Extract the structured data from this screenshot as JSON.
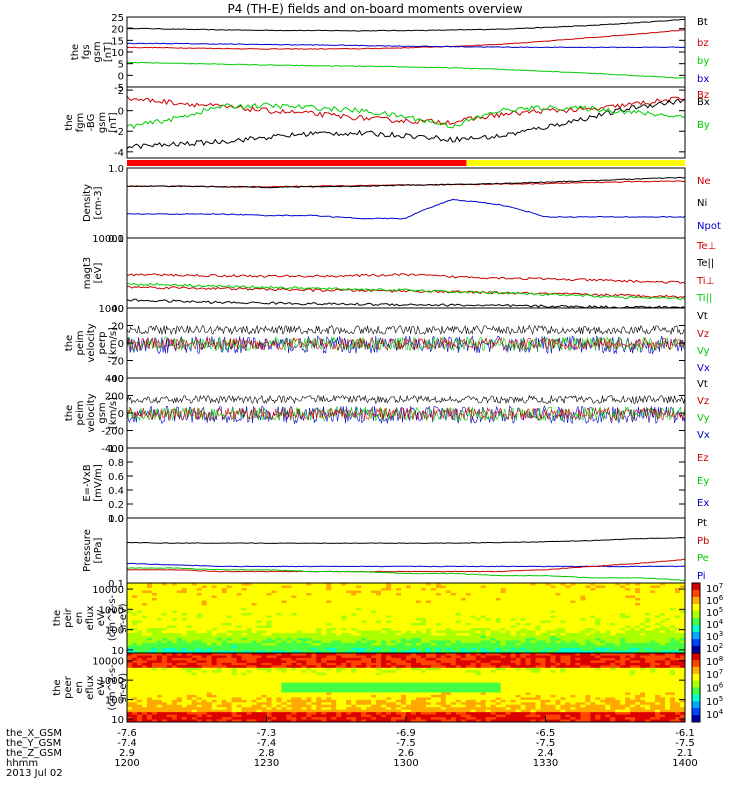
{
  "title": "P4 (TH-E) fields and on-board moments overview",
  "panels": [
    {
      "id": "fgs",
      "ylabel": [
        "the",
        "fgs",
        "gsm",
        "[nT]"
      ],
      "scale": "linear",
      "ylim": [
        -5,
        25
      ],
      "ticks": [
        "25",
        "20",
        "15",
        "10",
        "5",
        "0",
        "-5"
      ],
      "tickvals": [
        25,
        20,
        15,
        10,
        5,
        0,
        -5
      ],
      "legend": [
        {
          "label": "Bt",
          "color": "#000000"
        },
        {
          "label": "bz",
          "color": "#cc0000"
        },
        {
          "label": "by",
          "color": "#00cc00"
        },
        {
          "label": "bx",
          "color": "#0000cc"
        }
      ]
    },
    {
      "id": "fgm",
      "ylabel": [
        "the",
        "fgm",
        "-BG",
        "gsm",
        "[nT]"
      ],
      "scale": "linear",
      "ylim": [
        -4.6,
        2.3
      ],
      "ticks": [
        "2",
        "0",
        "-2",
        "-4"
      ],
      "tickvals": [
        2,
        0,
        -2,
        -4
      ],
      "legend": [
        {
          "label": "Bz",
          "color": "#cc0000"
        },
        {
          "label": "Bx",
          "color": "#000000"
        },
        {
          "label": "By",
          "color": "#00cc00"
        }
      ]
    },
    {
      "id": "density",
      "ylabel": [
        "Density",
        "[cm-3]"
      ],
      "scale": "log",
      "ylim": [
        0.1,
        1.0
      ],
      "ticks": [
        "1.0",
        "0.1"
      ],
      "tickvals": [
        1.0,
        0.1
      ],
      "legend": [
        {
          "label": "Ne",
          "color": "#cc0000"
        },
        {
          "label": "Ni",
          "color": "#000000"
        },
        {
          "label": "Npot",
          "color": "#0000cc"
        }
      ]
    },
    {
      "id": "temp",
      "ylabel": [
        "magt3",
        "[eV]"
      ],
      "scale": "log",
      "ylim": [
        1000,
        10000
      ],
      "ticks": [
        "10000",
        "1000"
      ],
      "tickvals": [
        10000,
        1000
      ],
      "legend": [
        {
          "label": "Te⊥",
          "color": "#cc0000"
        },
        {
          "label": "Te||",
          "color": "#000000"
        },
        {
          "label": "Ti⊥",
          "color": "#cc0000"
        },
        {
          "label": "Ti||",
          "color": "#00cc00"
        }
      ]
    },
    {
      "id": "velocity_perp",
      "ylabel": [
        "the",
        "peim",
        "velocity",
        "perp",
        "[km/s]"
      ],
      "scale": "linear",
      "ylim": [
        -40,
        40
      ],
      "ticks": [
        "40",
        "20",
        "0",
        "-20",
        "-40"
      ],
      "tickvals": [
        40,
        20,
        0,
        -20,
        -40
      ],
      "legend": [
        {
          "label": "Vt",
          "color": "#000000"
        },
        {
          "label": "Vz",
          "color": "#cc0000"
        },
        {
          "label": "Vy",
          "color": "#00cc00"
        },
        {
          "label": "Vx",
          "color": "#0000cc"
        }
      ]
    },
    {
      "id": "velocity_gsm",
      "ylabel": [
        "the",
        "peim",
        "velocity",
        "gsm",
        "[km/s]"
      ],
      "scale": "linear",
      "ylim": [
        -400,
        400
      ],
      "ticks": [
        "400",
        "200",
        "0",
        "-200",
        "-400"
      ],
      "tickvals": [
        400,
        200,
        0,
        -200,
        -400
      ],
      "legend": [
        {
          "label": "Vt",
          "color": "#000000"
        },
        {
          "label": "Vz",
          "color": "#cc0000"
        },
        {
          "label": "Vy",
          "color": "#00cc00"
        },
        {
          "label": "Vx",
          "color": "#0000cc"
        }
      ]
    },
    {
      "id": "efield",
      "ylabel": [
        "E=-VxB",
        "[mV/m]"
      ],
      "scale": "linear",
      "ylim": [
        0,
        1.0
      ],
      "ticks": [
        "1.0",
        "0.8",
        "0.6",
        "0.4",
        "0.2",
        "0.0"
      ],
      "tickvals": [
        1.0,
        0.8,
        0.6,
        0.4,
        0.2,
        0.0
      ],
      "legend": [
        {
          "label": "Ez",
          "color": "#cc0000"
        },
        {
          "label": "Ey",
          "color": "#00cc00"
        },
        {
          "label": "Ex",
          "color": "#0000cc"
        }
      ]
    },
    {
      "id": "pressure",
      "ylabel": [
        "Pressure",
        "[nPa]"
      ],
      "scale": "log",
      "ylim": [
        0.1,
        1.0
      ],
      "ticks": [
        "1.0",
        "0.1"
      ],
      "tickvals": [
        1.0,
        0.1
      ],
      "legend": [
        {
          "label": "Pt",
          "color": "#000000"
        },
        {
          "label": "Pb",
          "color": "#cc0000"
        },
        {
          "label": "Pe",
          "color": "#00cc00"
        },
        {
          "label": "Pi",
          "color": "#0000cc"
        }
      ]
    },
    {
      "id": "peir",
      "ylabel": [
        "the",
        "peir",
        "en",
        "eflux",
        "eV/",
        "(cm^2-s-",
        "sr-eV)"
      ],
      "scale": "log",
      "ylim": [
        7,
        20000
      ],
      "ticks": [
        "10000",
        "1000",
        "100",
        "10"
      ],
      "tickvals": [
        10000,
        1000,
        100,
        10
      ],
      "colorbar": {
        "exponents": [
          "7",
          "6",
          "5",
          "4",
          "3",
          "2"
        ],
        "min_exp": 1.6,
        "max_exp": 7.4
      }
    },
    {
      "id": "peer",
      "ylabel": [
        "the",
        "peer",
        "en",
        "eflux",
        "eV/",
        "(cm^2-s-",
        "sr-eV)"
      ],
      "scale": "log",
      "ylim": [
        7,
        25000
      ],
      "ticks": [
        "10000",
        "1000",
        "100",
        "10"
      ],
      "tickvals": [
        10000,
        1000,
        100,
        10
      ],
      "colorbar": {
        "exponents": [
          "8",
          "7",
          "6",
          "5",
          "4"
        ],
        "min_exp": 3.4,
        "max_exp": 8.6
      }
    }
  ],
  "footer": {
    "rows": [
      {
        "label": "the_X_GSM",
        "values": [
          "-7.6",
          "-7.3",
          "-6.9",
          "-6.5",
          "-6.1"
        ]
      },
      {
        "label": "the_Y_GSM",
        "values": [
          "-7.4",
          "-7.4",
          "-7.5",
          "-7.5",
          "-7.5"
        ]
      },
      {
        "label": "the_Z_GSM",
        "values": [
          "2.9",
          "2.8",
          "2.6",
          "2.4",
          "2.1"
        ]
      },
      {
        "label": "hhmm",
        "values": [
          "1200",
          "1230",
          "1300",
          "1330",
          "1400"
        ]
      }
    ],
    "date": "2013 Jul 02"
  },
  "chart_data": {
    "type": "line",
    "title": "P4 (TH-E) fields and on-board moments overview",
    "x": {
      "name": "hhmm",
      "ticks": [
        "1200",
        "1230",
        "1300",
        "1330",
        "1400"
      ],
      "range": [
        "12:00",
        "14:00"
      ]
    },
    "mode_bar": [
      {
        "from": "12:00",
        "to": "13:13",
        "color": "#ff0000"
      },
      {
        "from": "13:13",
        "to": "14:00",
        "color": "#ffff00"
      }
    ],
    "series": [
      {
        "panel": "fgs",
        "name": "Bt",
        "t": [
          0,
          10,
          20,
          30,
          40,
          50,
          60,
          70,
          80,
          90,
          100,
          110,
          120
        ],
        "v": [
          20.2,
          19.8,
          19.5,
          19.3,
          19.2,
          19.1,
          19.2,
          19.4,
          19.8,
          20.5,
          21.4,
          22.6,
          24.0
        ]
      },
      {
        "panel": "fgs",
        "name": "bz",
        "t": [
          0,
          10,
          20,
          30,
          40,
          50,
          60,
          70,
          80,
          90,
          100,
          110,
          120
        ],
        "v": [
          12.0,
          11.8,
          11.5,
          11.3,
          11.3,
          11.4,
          11.8,
          12.4,
          13.3,
          14.6,
          16.2,
          17.8,
          19.5
        ]
      },
      {
        "panel": "fgs",
        "name": "by",
        "t": [
          0,
          10,
          20,
          30,
          40,
          50,
          60,
          70,
          80,
          90,
          100,
          110,
          120
        ],
        "v": [
          5.5,
          5.2,
          4.8,
          4.4,
          4.1,
          3.9,
          3.6,
          3.2,
          2.6,
          1.8,
          0.9,
          -0.2,
          -1.2
        ]
      },
      {
        "panel": "fgs",
        "name": "bx",
        "t": [
          0,
          10,
          20,
          30,
          40,
          50,
          60,
          70,
          80,
          90,
          100,
          110,
          120
        ],
        "v": [
          13.7,
          13.6,
          13.4,
          13.2,
          13.0,
          12.8,
          12.5,
          12.3,
          12.1,
          12.0,
          12.0,
          12.0,
          12.1
        ]
      },
      {
        "panel": "fgm",
        "name": "Bz",
        "t": [
          0,
          10,
          20,
          30,
          40,
          50,
          60,
          70,
          80,
          90,
          100,
          110,
          120
        ],
        "v": [
          1.2,
          0.8,
          0.4,
          0.0,
          -0.3,
          -0.7,
          -1.0,
          -1.1,
          -0.4,
          0.0,
          0.1,
          0.7,
          1.2
        ]
      },
      {
        "panel": "fgm",
        "name": "Bx",
        "t": [
          0,
          10,
          20,
          30,
          40,
          50,
          60,
          70,
          80,
          90,
          100,
          110,
          120
        ],
        "v": [
          -3.5,
          -3.3,
          -3.0,
          -2.6,
          -2.2,
          -2.2,
          -2.4,
          -2.8,
          -2.5,
          -1.6,
          -0.6,
          0.4,
          1.0
        ]
      },
      {
        "panel": "fgm",
        "name": "By",
        "t": [
          0,
          10,
          20,
          30,
          40,
          50,
          60,
          70,
          80,
          90,
          100,
          110,
          120
        ],
        "v": [
          -1.6,
          -0.8,
          0.4,
          0.5,
          0.3,
          0.0,
          -0.6,
          -1.5,
          0.0,
          0.3,
          0.2,
          -0.2,
          -0.6
        ]
      },
      {
        "panel": "density",
        "name": "Ne",
        "t": [
          0,
          10,
          20,
          30,
          40,
          50,
          60,
          70,
          80,
          90,
          100,
          110,
          120
        ],
        "v": [
          0.55,
          0.55,
          0.54,
          0.54,
          0.55,
          0.56,
          0.57,
          0.58,
          0.59,
          0.6,
          0.62,
          0.64,
          0.65
        ]
      },
      {
        "panel": "density",
        "name": "Ni",
        "t": [
          0,
          10,
          20,
          30,
          40,
          50,
          60,
          70,
          80,
          90,
          100,
          110,
          120
        ],
        "v": [
          0.55,
          0.55,
          0.54,
          0.53,
          0.54,
          0.55,
          0.57,
          0.58,
          0.6,
          0.63,
          0.66,
          0.7,
          0.73
        ]
      },
      {
        "panel": "density",
        "name": "Npot",
        "t": [
          0,
          10,
          20,
          30,
          40,
          50,
          60,
          70,
          75,
          80,
          90,
          100,
          110,
          120
        ],
        "v": [
          0.22,
          0.22,
          0.22,
          0.21,
          0.21,
          0.19,
          0.19,
          0.35,
          0.33,
          0.3,
          0.2,
          0.2,
          0.2,
          0.2
        ]
      },
      {
        "panel": "temp",
        "name": "Te||",
        "t": [
          0,
          10,
          20,
          30,
          40,
          50,
          60,
          70,
          80,
          90,
          100,
          110,
          120
        ],
        "v": [
          1300,
          1250,
          1200,
          1180,
          1150,
          1130,
          1120,
          1100,
          1080,
          1060,
          1040,
          1030,
          1020
        ]
      },
      {
        "panel": "temp",
        "name": "Ti⊥",
        "t": [
          0,
          10,
          20,
          30,
          40,
          50,
          60,
          70,
          80,
          90,
          100,
          110,
          120
        ],
        "v": [
          2000,
          1950,
          1900,
          1850,
          1800,
          1780,
          1750,
          1700,
          1650,
          1600,
          1550,
          1500,
          1450
        ]
      },
      {
        "panel": "temp",
        "name": "Ti||",
        "t": [
          0,
          10,
          20,
          30,
          40,
          50,
          60,
          70,
          80,
          90,
          100,
          110,
          120
        ],
        "v": [
          2200,
          2150,
          2050,
          1980,
          1900,
          1850,
          1800,
          1700,
          1650,
          1550,
          1480,
          1400,
          1350
        ]
      },
      {
        "panel": "temp",
        "name": "Te⊥",
        "t": [
          0,
          10,
          20,
          30,
          40,
          50,
          60,
          70,
          80,
          90,
          100,
          110,
          120
        ],
        "v": [
          3000,
          2950,
          2900,
          2850,
          2850,
          2900,
          3000,
          2800,
          2700,
          2600,
          2500,
          2400,
          2300
        ]
      },
      {
        "panel": "pressure",
        "name": "Pt",
        "t": [
          0,
          10,
          20,
          30,
          40,
          50,
          60,
          70,
          80,
          90,
          100,
          110,
          120
        ],
        "v": [
          0.42,
          0.41,
          0.41,
          0.41,
          0.41,
          0.41,
          0.41,
          0.41,
          0.42,
          0.43,
          0.45,
          0.48,
          0.5
        ]
      },
      {
        "panel": "pressure",
        "name": "Pi",
        "t": [
          0,
          10,
          20,
          30,
          40,
          50,
          60,
          70,
          80,
          90,
          100,
          110,
          120
        ],
        "v": [
          0.2,
          0.19,
          0.18,
          0.18,
          0.18,
          0.18,
          0.18,
          0.18,
          0.18,
          0.18,
          0.18,
          0.18,
          0.18
        ]
      },
      {
        "panel": "pressure",
        "name": "Pb",
        "t": [
          0,
          10,
          20,
          30,
          40,
          50,
          60,
          70,
          80,
          90,
          100,
          110,
          120
        ],
        "v": [
          0.16,
          0.16,
          0.15,
          0.15,
          0.15,
          0.15,
          0.15,
          0.15,
          0.15,
          0.16,
          0.18,
          0.2,
          0.23
        ]
      },
      {
        "panel": "pressure",
        "name": "Pe",
        "t": [
          0,
          10,
          20,
          30,
          40,
          50,
          60,
          70,
          80,
          90,
          100,
          110,
          120
        ],
        "v": [
          0.17,
          0.17,
          0.16,
          0.16,
          0.15,
          0.15,
          0.14,
          0.14,
          0.13,
          0.13,
          0.12,
          0.12,
          0.11
        ]
      }
    ]
  }
}
